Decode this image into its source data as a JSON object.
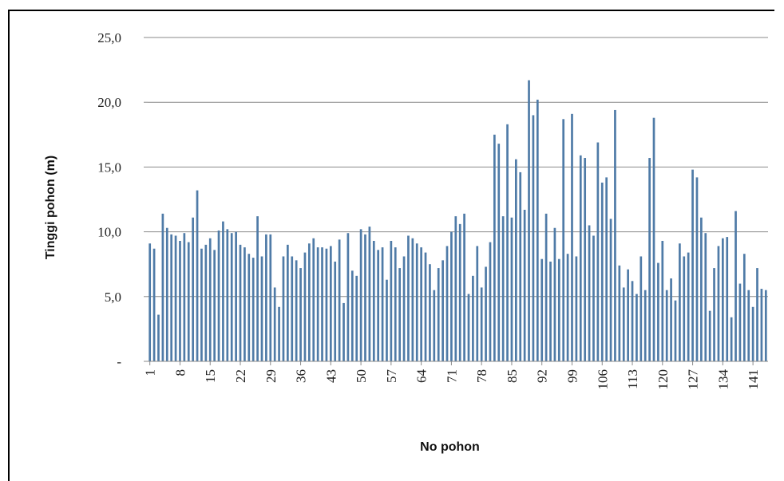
{
  "chart_data": {
    "type": "bar",
    "title": "",
    "xlabel": "No pohon",
    "ylabel": "Tinggi pohon (m)",
    "ylim": [
      0,
      25
    ],
    "yticks": [
      0,
      5,
      10,
      15,
      20,
      25
    ],
    "ytick_labels": [
      "-",
      "5,0",
      "10,0",
      "15,0",
      "20,0",
      "25,0"
    ],
    "grid": true,
    "legend": "none",
    "bar_color": "#4f7ba7",
    "x_tick_labels": [
      "1",
      "8",
      "15",
      "22",
      "29",
      "36",
      "43",
      "50",
      "57",
      "64",
      "71",
      "78",
      "85",
      "92",
      "99",
      "106",
      "113",
      "120",
      "127",
      "134",
      "141"
    ],
    "x_tick_step": 7,
    "categories": [
      1,
      2,
      3,
      4,
      5,
      6,
      7,
      8,
      9,
      10,
      11,
      12,
      13,
      14,
      15,
      16,
      17,
      18,
      19,
      20,
      21,
      22,
      23,
      24,
      25,
      26,
      27,
      28,
      29,
      30,
      31,
      32,
      33,
      34,
      35,
      36,
      37,
      38,
      39,
      40,
      41,
      42,
      43,
      44,
      45,
      46,
      47,
      48,
      49,
      50,
      51,
      52,
      53,
      54,
      55,
      56,
      57,
      58,
      59,
      60,
      61,
      62,
      63,
      64,
      65,
      66,
      67,
      68,
      69,
      70,
      71,
      72,
      73,
      74,
      75,
      76,
      77,
      78,
      79,
      80,
      81,
      82,
      83,
      84,
      85,
      86,
      87,
      88,
      89,
      90,
      91,
      92,
      93,
      94,
      95,
      96,
      97,
      98,
      99,
      100,
      101,
      102,
      103,
      104,
      105,
      106,
      107,
      108,
      109,
      110,
      111,
      112,
      113,
      114,
      115,
      116,
      117,
      118,
      119,
      120,
      121,
      122,
      123,
      124,
      125,
      126,
      127,
      128,
      129,
      130,
      131,
      132,
      133,
      134,
      135,
      136,
      137,
      138,
      139,
      140,
      141,
      142,
      143,
      144
    ],
    "values": [
      9.1,
      8.7,
      3.6,
      11.4,
      10.3,
      9.8,
      9.7,
      9.3,
      9.9,
      9.2,
      11.1,
      13.2,
      8.7,
      9.0,
      9.5,
      8.6,
      10.1,
      10.8,
      10.2,
      9.9,
      10.0,
      9.0,
      8.8,
      8.3,
      8.0,
      11.2,
      8.1,
      9.8,
      9.8,
      5.7,
      4.2,
      8.1,
      9.0,
      8.1,
      7.8,
      7.2,
      8.4,
      9.1,
      9.5,
      8.8,
      8.8,
      8.7,
      8.9,
      7.7,
      9.4,
      4.5,
      9.9,
      7.0,
      6.6,
      10.2,
      9.8,
      10.4,
      9.3,
      8.6,
      8.8,
      6.3,
      9.3,
      8.8,
      7.2,
      8.1,
      9.7,
      9.5,
      9.1,
      8.8,
      8.4,
      7.5,
      5.5,
      7.2,
      7.8,
      8.9,
      10.0,
      11.2,
      10.6,
      11.4,
      5.2,
      6.6,
      8.9,
      5.7,
      7.3,
      9.2,
      17.5,
      16.8,
      11.2,
      18.3,
      11.1,
      15.6,
      14.6,
      11.7,
      21.7,
      19.0,
      20.2,
      7.9,
      11.4,
      7.7,
      10.3,
      7.9,
      18.7,
      8.3,
      19.1,
      8.1,
      15.9,
      15.7,
      10.5,
      9.7,
      16.9,
      13.8,
      14.2,
      11.0,
      19.4,
      7.4,
      5.7,
      7.1,
      6.2,
      5.2,
      8.1,
      5.5,
      15.7,
      18.8,
      7.6,
      9.3,
      5.5,
      6.4,
      4.7,
      9.1,
      8.1,
      8.4,
      14.8,
      14.2,
      11.1,
      9.9,
      3.9,
      7.2,
      8.9,
      9.5,
      9.6,
      3.4,
      11.6,
      6.0,
      8.3,
      5.5,
      4.2,
      7.2,
      5.6,
      5.5
    ]
  }
}
